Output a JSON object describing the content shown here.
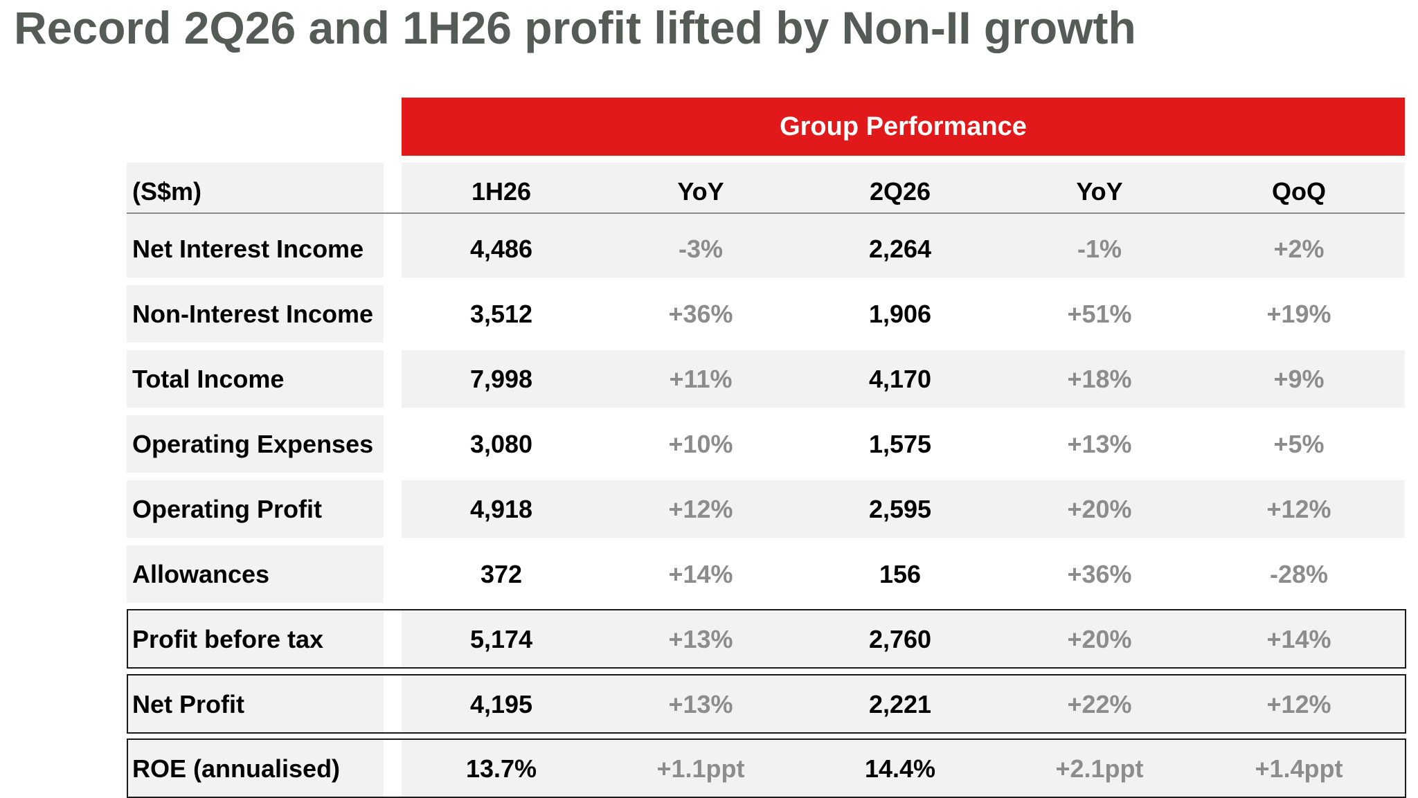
{
  "title": "Record 2Q26 and 1H26 profit lifted by Non-II growth",
  "group_header": "Group Performance",
  "header_row": {
    "unit": "(S$m)",
    "columns": [
      "1H26",
      "YoY",
      "2Q26",
      "YoY",
      "QoQ"
    ]
  },
  "rows": [
    {
      "label": "Net Interest Income",
      "h1": "4,486",
      "h1_yoy": "-3%",
      "q2": "2,264",
      "q2_yoy": "-1%",
      "qoq": "+2%"
    },
    {
      "label": "Non-Interest Income",
      "h1": "3,512",
      "h1_yoy": "+36%",
      "q2": "1,906",
      "q2_yoy": "+51%",
      "qoq": "+19%"
    },
    {
      "label": "Total Income",
      "h1": "7,998",
      "h1_yoy": "+11%",
      "q2": "4,170",
      "q2_yoy": "+18%",
      "qoq": "+9%"
    },
    {
      "label": "Operating Expenses",
      "h1": "3,080",
      "h1_yoy": "+10%",
      "q2": "1,575",
      "q2_yoy": "+13%",
      "qoq": "+5%"
    },
    {
      "label": "Operating Profit",
      "h1": "4,918",
      "h1_yoy": "+12%",
      "q2": "2,595",
      "q2_yoy": "+20%",
      "qoq": "+12%"
    },
    {
      "label": "Allowances",
      "h1": "372",
      "h1_yoy": "+14%",
      "q2": "156",
      "q2_yoy": "+36%",
      "qoq": "-28%"
    },
    {
      "label": "Profit before tax",
      "h1": "5,174",
      "h1_yoy": "+13%",
      "q2": "2,760",
      "q2_yoy": "+20%",
      "qoq": "+14%"
    },
    {
      "label": "Net Profit",
      "h1": "4,195",
      "h1_yoy": "+13%",
      "q2": "2,221",
      "q2_yoy": "+22%",
      "qoq": "+12%"
    },
    {
      "label": "ROE (annualised)",
      "h1": "13.7%",
      "h1_yoy": "+1.1ppt",
      "q2": "14.4%",
      "q2_yoy": "+2.1ppt",
      "qoq": "+1.4ppt"
    }
  ],
  "colors": {
    "header_red": "#e2191b",
    "title_grey": "#555b57",
    "row_fill": "#f2f2f2",
    "change_grey": "#8c8c8c"
  }
}
